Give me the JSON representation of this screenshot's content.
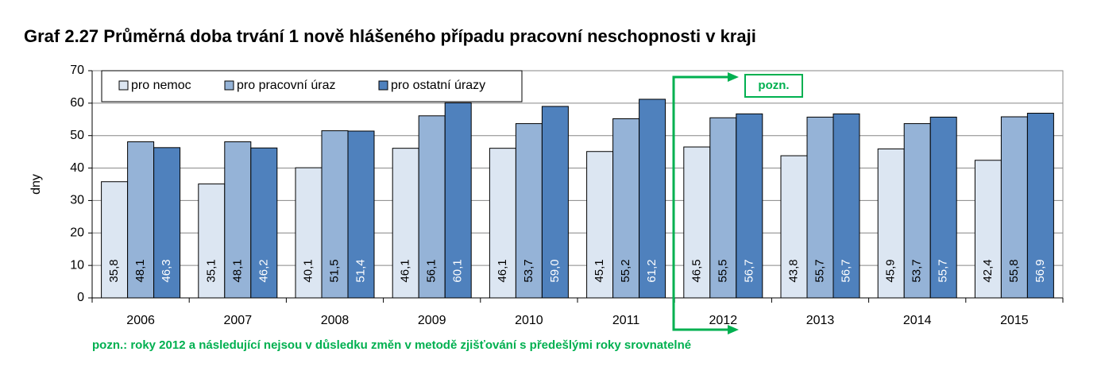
{
  "chart_data": {
    "type": "bar",
    "title": "Graf 2.27 Průměrná doba trvání 1 nově hlášeného případu pracovní neschopnosti v kraji",
    "y_label": "dny",
    "categories": [
      "2006",
      "2007",
      "2008",
      "2009",
      "2010",
      "2011",
      "2012",
      "2013",
      "2014",
      "2015"
    ],
    "series": [
      {
        "name": "pro nemoc",
        "color": "#dce6f2",
        "label_color": "#000000",
        "values": [
          35.8,
          35.1,
          40.1,
          46.1,
          46.1,
          45.1,
          46.5,
          43.8,
          45.9,
          42.4
        ],
        "value_labels": [
          "35,8",
          "35,1",
          "40,1",
          "46,1",
          "46,1",
          "45,1",
          "46,5",
          "43,8",
          "45,9",
          "42,4"
        ]
      },
      {
        "name": "pro pracovní úraz",
        "color": "#95b3d7",
        "label_color": "#000000",
        "values": [
          48.1,
          48.1,
          51.5,
          56.1,
          53.7,
          55.2,
          55.5,
          55.7,
          53.7,
          55.8
        ],
        "value_labels": [
          "48,1",
          "48,1",
          "51,5",
          "56,1",
          "53,7",
          "55,2",
          "55,5",
          "55,7",
          "53,7",
          "55,8"
        ]
      },
      {
        "name": "pro ostatní úrazy",
        "color": "#4f81bd",
        "label_color": "#ffffff",
        "values": [
          46.3,
          46.2,
          51.4,
          60.1,
          59.0,
          61.2,
          56.7,
          56.7,
          55.7,
          56.9
        ],
        "value_labels": [
          "46,3",
          "46,2",
          "51,4",
          "60,1",
          "59,0",
          "61,2",
          "56,7",
          "56,7",
          "55,7",
          "56,9"
        ]
      }
    ],
    "ylim": [
      0,
      70
    ],
    "yticks": [
      0,
      10,
      20,
      30,
      40,
      50,
      60,
      70
    ],
    "grid": true,
    "legend": "top-left",
    "annotations": [
      "pozn.",
      "pozn.: roky 2012 a následující nejsou v důsledku změn v metodě zjišťování s předešlými roky srovnatelné"
    ]
  }
}
